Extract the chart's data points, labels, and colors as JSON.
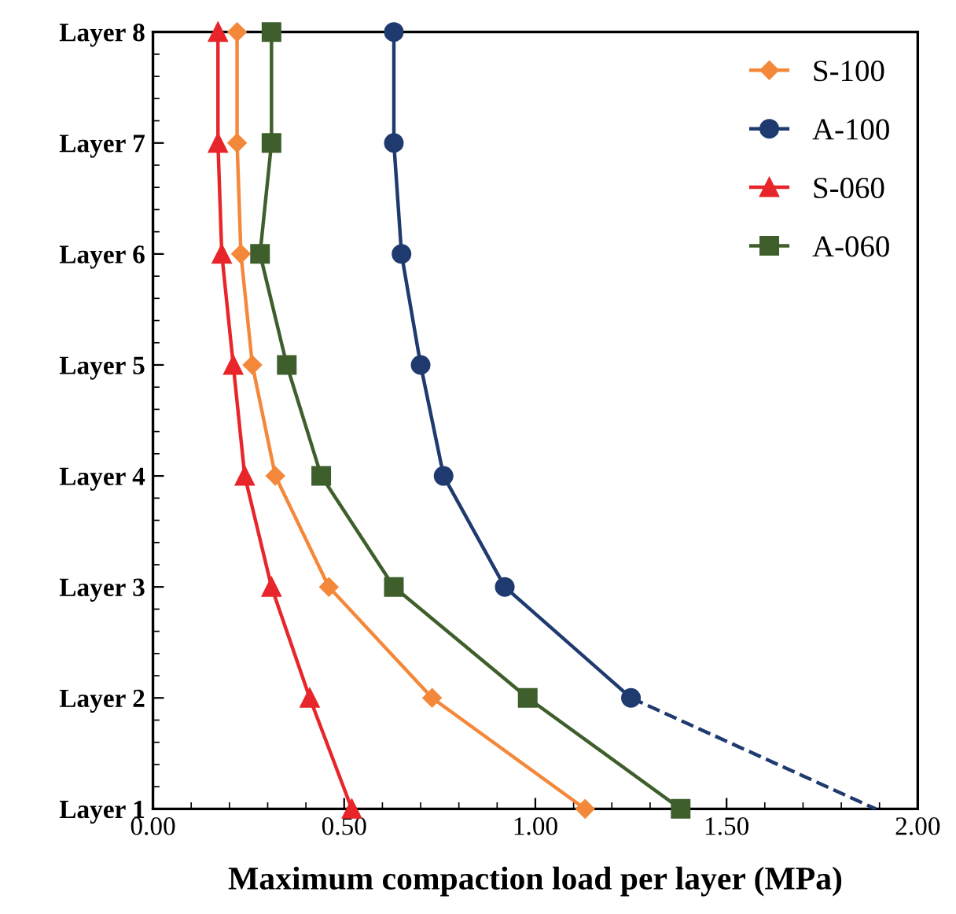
{
  "chart_data": {
    "type": "line",
    "orientation": "horizontal",
    "xlabel": "Maximum compaction load per layer (MPa)",
    "xlim": [
      0,
      2
    ],
    "xticks": [
      {
        "value": 0,
        "label": "0.00"
      },
      {
        "value": 0.5,
        "label": "0.50"
      },
      {
        "value": 1,
        "label": "1.00"
      },
      {
        "value": 1.5,
        "label": "1.50"
      },
      {
        "value": 2,
        "label": "2.00"
      }
    ],
    "categories": [
      "Layer 8",
      "Layer 7",
      "Layer 6",
      "Layer 5",
      "Layer 4",
      "Layer 3",
      "Layer 2",
      "Layer 1"
    ],
    "grid": false,
    "legend": "top right",
    "series": [
      {
        "name": "S-100",
        "color": "#f4883a",
        "marker": "diamond",
        "values": [
          0.22,
          0.22,
          0.23,
          0.26,
          0.32,
          0.46,
          0.73,
          1.13
        ]
      },
      {
        "name": "A-100",
        "color": "#1f3a6e",
        "marker": "circle",
        "values": [
          0.63,
          0.63,
          0.65,
          0.7,
          0.76,
          0.92,
          1.25,
          null
        ]
      },
      {
        "name": "S-060",
        "color": "#e8252a",
        "marker": "triangle",
        "values": [
          0.17,
          0.17,
          0.18,
          0.21,
          0.24,
          0.31,
          0.41,
          0.52
        ]
      },
      {
        "name": "A-060",
        "color": "#3e5f2c",
        "marker": "square",
        "values": [
          0.31,
          0.31,
          0.28,
          0.35,
          0.44,
          0.63,
          0.98,
          1.38
        ]
      },
      {
        "color": "#1f3a6e",
        "marker": "none",
        "line_style": "dashed",
        "values": [
          null,
          null,
          null,
          null,
          null,
          null,
          1.25,
          1.89
        ]
      }
    ]
  }
}
